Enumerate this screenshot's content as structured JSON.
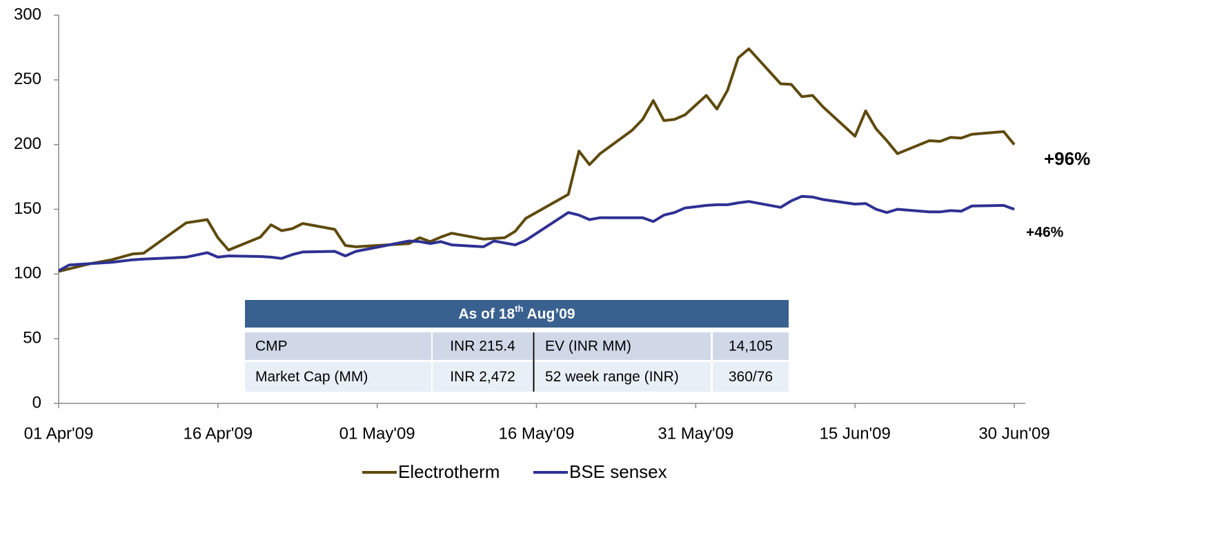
{
  "chart_data": {
    "type": "line",
    "x": [
      "2009-04-01",
      "2009-04-02",
      "2009-04-04",
      "2009-04-06",
      "2009-04-08",
      "2009-04-09",
      "2009-04-13",
      "2009-04-15",
      "2009-04-16",
      "2009-04-17",
      "2009-04-20",
      "2009-04-21",
      "2009-04-22",
      "2009-04-23",
      "2009-04-24",
      "2009-04-27",
      "2009-04-28",
      "2009-04-29",
      "2009-05-04",
      "2009-05-05",
      "2009-05-06",
      "2009-05-07",
      "2009-05-08",
      "2009-05-11",
      "2009-05-12",
      "2009-05-13",
      "2009-05-14",
      "2009-05-15",
      "2009-05-19",
      "2009-05-20",
      "2009-05-21",
      "2009-05-22",
      "2009-05-25",
      "2009-05-26",
      "2009-05-27",
      "2009-05-28",
      "2009-05-29",
      "2009-05-30",
      "2009-06-01",
      "2009-06-02",
      "2009-06-03",
      "2009-06-04",
      "2009-06-05",
      "2009-06-08",
      "2009-06-09",
      "2009-06-10",
      "2009-06-11",
      "2009-06-12",
      "2009-06-15",
      "2009-06-16",
      "2009-06-17",
      "2009-06-18",
      "2009-06-19",
      "2009-06-22",
      "2009-06-23",
      "2009-06-24",
      "2009-06-25",
      "2009-06-26",
      "2009-06-29",
      "2009-06-30"
    ],
    "series": [
      {
        "name": "Electrotherm",
        "color": "#5e4a0c",
        "values": [
          102,
          104,
          108,
          111,
          115.5,
          116,
          139.5,
          142,
          128,
          118.5,
          128.5,
          138,
          133.5,
          135,
          139,
          134.5,
          122,
          121,
          123.5,
          128,
          125,
          128.5,
          131.5,
          127,
          127.5,
          128,
          133,
          143,
          161.5,
          195,
          184.5,
          193,
          211,
          219.5,
          234,
          218.5,
          219.5,
          223,
          238,
          227.5,
          242,
          267,
          274,
          247,
          246.5,
          237,
          238,
          229,
          206.5,
          226,
          212,
          203,
          193,
          203,
          202.5,
          205.5,
          205,
          208,
          210,
          200
        ]
      },
      {
        "name": "BSE sensex",
        "color": "#2e3192",
        "values": [
          102.5,
          107,
          108,
          109,
          111,
          111.5,
          113,
          116.5,
          113,
          114,
          113.5,
          113,
          112,
          115,
          117,
          117.5,
          114,
          117.5,
          125.5,
          125,
          123.5,
          125,
          122.5,
          121,
          125.5,
          124,
          122.5,
          126,
          147.5,
          145.5,
          142,
          143.5,
          143.5,
          143.5,
          140.5,
          145.5,
          147.5,
          151,
          153,
          153.5,
          153.5,
          155,
          156,
          151.5,
          156.5,
          160,
          159.5,
          157.5,
          154,
          154.5,
          150,
          147.5,
          150,
          148,
          148,
          149,
          148.5,
          152.5,
          153,
          150
        ]
      }
    ],
    "xlim": [
      "2009-04-01",
      "2009-06-30"
    ],
    "xticks": [
      {
        "value": "2009-04-01",
        "label": "01 Apr'09"
      },
      {
        "value": "2009-04-16",
        "label": "16 Apr'09"
      },
      {
        "value": "2009-05-01",
        "label": "01 May'09"
      },
      {
        "value": "2009-05-16",
        "label": "16 May'09"
      },
      {
        "value": "2009-05-31",
        "label": "31 May'09"
      },
      {
        "value": "2009-06-15",
        "label": "15 Jun'09"
      },
      {
        "value": "2009-06-30",
        "label": "30 Jun'09"
      }
    ],
    "ylim": [
      0,
      300
    ],
    "yticks": [
      0,
      50,
      100,
      150,
      200,
      250,
      300
    ],
    "grid": false,
    "legend": "bottom",
    "annotations": [
      "+96%",
      "+46%"
    ]
  },
  "table": {
    "header": [
      "As of 18",
      "th",
      " Aug’09"
    ],
    "rows": [
      [
        "CMP",
        "INR 215.4",
        "EV (INR MM)",
        "14,105"
      ],
      [
        "Market Cap (MM)",
        "INR 2,472",
        "52 week range (INR)",
        "360/76"
      ]
    ]
  }
}
